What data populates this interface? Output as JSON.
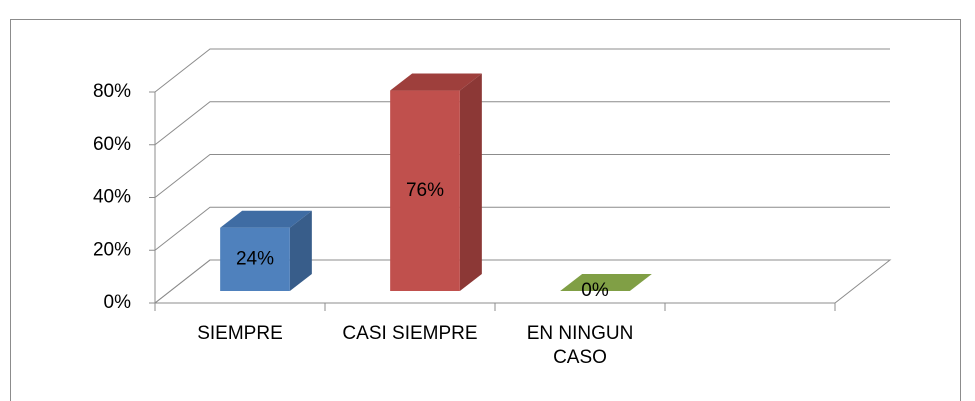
{
  "chart_data": {
    "type": "bar3d",
    "categories": [
      "SIEMPRE",
      "CASI SIEMPRE",
      "EN NINGUN CASO",
      null
    ],
    "values": [
      24,
      76,
      0,
      null
    ],
    "value_labels": [
      "24%",
      "76%",
      "0%",
      null
    ],
    "colors": [
      {
        "front": "#4f81bd",
        "side": "#385d8a",
        "top": "#3f6ca3"
      },
      {
        "front": "#c0504d",
        "side": "#8c3836",
        "top": "#9e3f3c"
      },
      {
        "front": "#9bbb59",
        "side": "#77933c",
        "top": "#809f45"
      },
      null
    ],
    "ylim": [
      0,
      80
    ],
    "yticks": [
      {
        "value": 0,
        "label": "0%"
      },
      {
        "value": 20,
        "label": "20%"
      },
      {
        "value": 40,
        "label": "40%"
      },
      {
        "value": 60,
        "label": "60%"
      },
      {
        "value": 80,
        "label": "80%"
      }
    ],
    "grid": true
  }
}
